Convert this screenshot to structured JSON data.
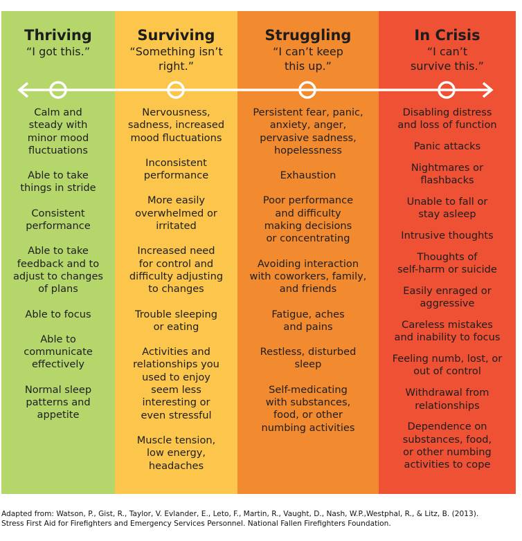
{
  "colors": {
    "thriving": "#b5d66b",
    "surviving": "#fbc64b",
    "struggling": "#f28a2f",
    "crisis": "#ee5134",
    "line": "#ffffff"
  },
  "columns": [
    {
      "title": "Thriving",
      "quote": "“I got this.”",
      "items": [
        "Calm and\nsteady with\nminor mood\nfluctuations",
        "Able to take\nthings in stride",
        "Consistent\nperformance",
        "Able to take\nfeedback and to\nadjust to changes\nof plans",
        "Able to focus",
        "Able to\ncommunicate\neffectively",
        "Normal sleep\npatterns and\nappetite"
      ]
    },
    {
      "title": "Surviving",
      "quote": "“Something isn’t\nright.”",
      "items": [
        "Nervousness,\nsadness, increased\nmood fluctuations",
        "Inconsistent\nperformance",
        "More easily\noverwhelmed or\nirritated",
        "Increased need\nfor control and\ndifficulty adjusting\nto changes",
        "Trouble sleeping\nor eating",
        "Activities and\nrelationships you\nused to enjoy\nseem less\ninteresting or\neven stressful",
        "Muscle tension,\nlow energy,\nheadaches"
      ]
    },
    {
      "title": "Struggling",
      "quote": "“I can’t keep\nthis up.”",
      "items": [
        "Persistent fear, panic,\nanxiety, anger,\npervasive sadness,\nhopelessness",
        "Exhaustion",
        "Poor performance\nand difficulty\nmaking decisions\nor concentrating",
        "Avoiding interaction\nwith coworkers, family,\nand friends",
        "Fatigue, aches\nand pains",
        "Restless, disturbed\nsleep",
        "Self-medicating\nwith substances,\nfood, or other\nnumbing activities"
      ]
    },
    {
      "title": "In Crisis",
      "quote": "“I can’t\nsurvive this.”",
      "items": [
        "Disabling distress\nand loss of function",
        "Panic attacks",
        "Nightmares or\nflashbacks",
        "Unable to fall or\nstay asleep",
        "Intrusive thoughts",
        "Thoughts of\nself-harm or suicide",
        "Easily enraged or\naggressive",
        "Careless mistakes\nand inability to focus",
        "Feeling numb, lost, or\nout of control",
        "Withdrawal from\nrelationships",
        "Dependence on\nsubstances, food,\nor other numbing\nactivities to cope"
      ]
    }
  ],
  "footer": {
    "line1": "Adapted from: Watson, P., Gist, R., Taylor, V. Evlander, E., Leto, F., Martin, R., Vaught, D., Nash, W.P.,Westphal, R., & Litz, B. (2013).",
    "line2": "Stress First Aid for Firefighters and Emergency Services Personnel. National Fallen Firefighters Foundation."
  }
}
